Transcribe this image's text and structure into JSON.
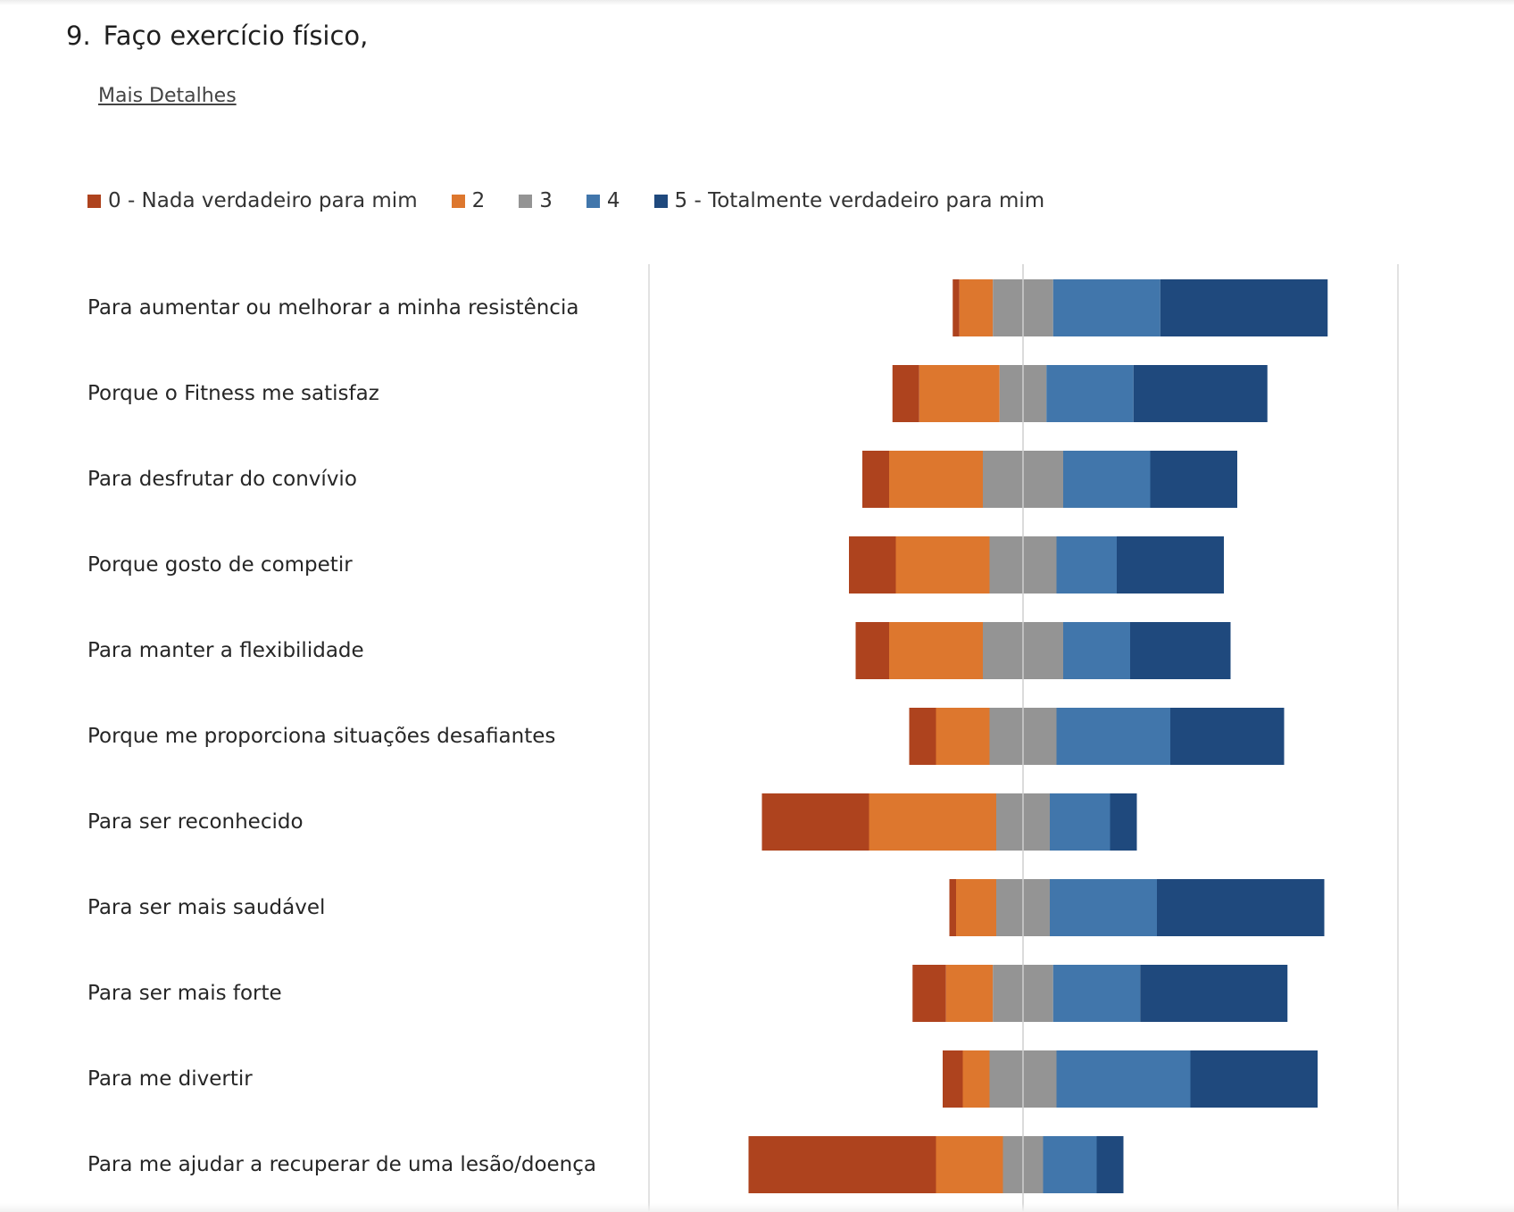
{
  "question": {
    "number": "9.",
    "title": "Faço exercício físico,",
    "details_link": "Mais Detalhes"
  },
  "chart_data": {
    "type": "bar",
    "orientation": "horizontal",
    "layout": "diverging-stacked",
    "center_category": "3",
    "grid": false,
    "legend_position": "top",
    "categories": [
      "Para aumentar ou melhorar a minha resistência",
      "Porque o Fitness me satisfaz",
      "Para desfrutar do convívio",
      "Porque gosto de competir",
      "Para manter a flexibilidade",
      "Porque me proporciona situações desafiantes",
      "Para ser reconhecido",
      "Para ser mais saudável",
      "Para ser mais forte",
      "Para me divertir",
      "Para me ajudar a recuperar de uma lesão/doença"
    ],
    "series": [
      {
        "name": "0 - Nada verdadeiro para mim",
        "color": "#ae431e",
        "values": [
          1,
          4,
          4,
          7,
          5,
          4,
          16,
          1,
          5,
          3,
          28
        ]
      },
      {
        "name": "2",
        "color": "#dd772e",
        "values": [
          5,
          12,
          14,
          14,
          14,
          8,
          19,
          6,
          7,
          4,
          10
        ]
      },
      {
        "name": "3",
        "color": "#949494",
        "values": [
          9,
          7,
          12,
          10,
          12,
          10,
          8,
          8,
          9,
          10,
          6
        ]
      },
      {
        "name": "4",
        "color": "#4176ab",
        "values": [
          16,
          13,
          13,
          9,
          10,
          17,
          9,
          16,
          13,
          20,
          8
        ]
      },
      {
        "name": "5 - Totalmente verdadeiro para mim",
        "color": "#1f497d",
        "values": [
          25,
          20,
          13,
          16,
          15,
          17,
          4,
          25,
          22,
          19,
          4
        ]
      }
    ]
  }
}
